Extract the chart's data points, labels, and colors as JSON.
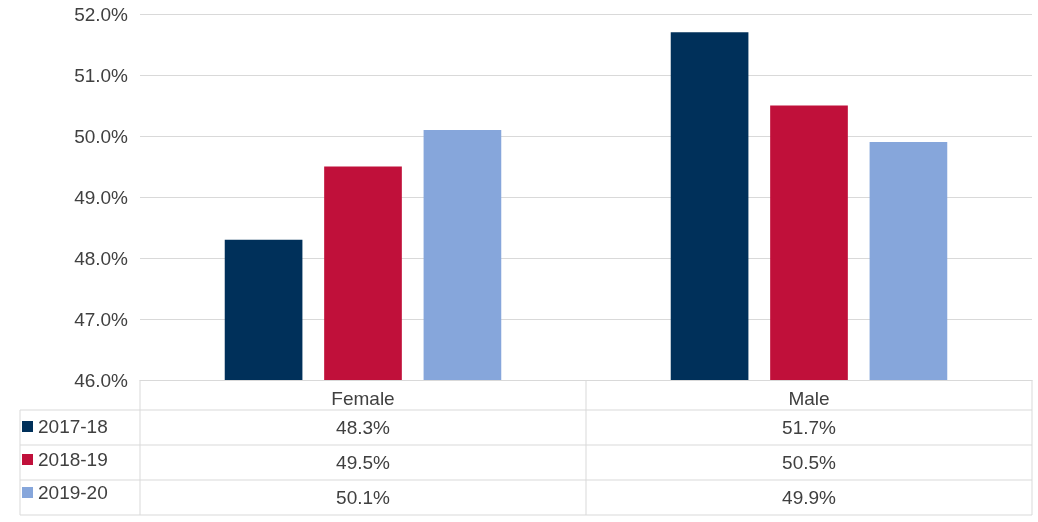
{
  "chart_data": {
    "type": "bar",
    "categories": [
      "Female",
      "Male"
    ],
    "series": [
      {
        "name": "2017-18",
        "color": "#00305a",
        "values": [
          48.3,
          51.7
        ],
        "value_labels": [
          "48.3%",
          "51.7%"
        ]
      },
      {
        "name": "2018-19",
        "color": "#c0103a",
        "values": [
          49.5,
          50.5
        ],
        "value_labels": [
          "49.5%",
          "50.5%"
        ]
      },
      {
        "name": "2019-20",
        "color": "#86a6db",
        "values": [
          50.1,
          49.9
        ],
        "value_labels": [
          "50.1%",
          "49.9%"
        ]
      }
    ],
    "ylim": [
      46,
      52
    ],
    "yticks": [
      {
        "value": 46,
        "label": "46.0%"
      },
      {
        "value": 47,
        "label": "47.0%"
      },
      {
        "value": 48,
        "label": "48.0%"
      },
      {
        "value": 49,
        "label": "49.0%"
      },
      {
        "value": 50,
        "label": "50.0%"
      },
      {
        "value": 51,
        "label": "51.0%"
      },
      {
        "value": 52,
        "label": "52.0%"
      }
    ],
    "grid": "y",
    "legend": "bottom"
  }
}
